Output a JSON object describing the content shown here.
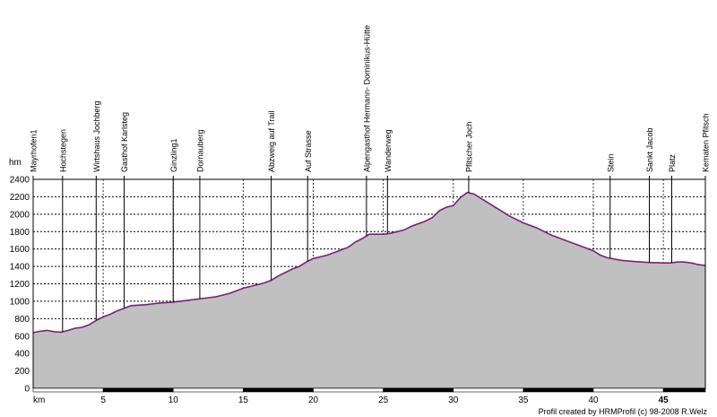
{
  "chart_data": {
    "type": "area",
    "ylabel": "hm",
    "xlabel": "km",
    "xlim": [
      0,
      48
    ],
    "ylim": [
      0,
      2400
    ],
    "y_ticks": [
      0,
      200,
      400,
      600,
      800,
      1000,
      1200,
      1400,
      1600,
      1800,
      2000,
      2200,
      2400
    ],
    "x_ticks": [
      5,
      10,
      15,
      20,
      25,
      30,
      35,
      40,
      45
    ],
    "x_tick_bold": [
      45
    ],
    "grid": true,
    "colors": {
      "fill": "#c0c0c0",
      "line": "#7b1e7b",
      "grid": "#000000",
      "axis_bar": "#000000"
    },
    "series": [
      {
        "x": [
          0,
          0.5,
          1,
          1.5,
          2,
          2.5,
          3,
          3.5,
          4,
          4.5,
          5,
          5.5,
          6,
          6.5,
          7,
          8,
          9,
          10,
          10.5,
          11,
          12,
          12.5,
          13,
          14,
          15,
          16,
          16.5,
          17,
          17.5,
          18,
          18.5,
          19,
          19.5,
          20,
          21,
          22,
          22.5,
          23,
          23.5,
          24,
          25,
          25.5,
          26,
          26.5,
          27,
          28,
          28.5,
          29,
          29.5,
          30,
          30.5,
          31,
          31.5,
          32,
          33,
          34,
          35,
          36,
          37,
          38,
          39,
          40,
          40.5,
          41,
          42,
          43,
          44,
          45,
          45.5,
          46,
          46.5,
          47,
          47.5,
          48
        ],
        "y": [
          640,
          655,
          665,
          650,
          645,
          665,
          690,
          700,
          730,
          780,
          820,
          850,
          890,
          920,
          950,
          960,
          980,
          990,
          1000,
          1010,
          1030,
          1040,
          1050,
          1090,
          1150,
          1190,
          1210,
          1240,
          1290,
          1330,
          1370,
          1400,
          1450,
          1490,
          1530,
          1590,
          1620,
          1680,
          1720,
          1770,
          1770,
          1780,
          1800,
          1820,
          1860,
          1920,
          1960,
          2040,
          2080,
          2100,
          2190,
          2250,
          2230,
          2180,
          2080,
          1980,
          1900,
          1840,
          1760,
          1700,
          1640,
          1580,
          1530,
          1500,
          1470,
          1455,
          1445,
          1440,
          1440,
          1450,
          1450,
          1440,
          1420,
          1410
        ]
      }
    ],
    "waypoints": [
      {
        "name": "Mayrhofen1",
        "km": 0
      },
      {
        "name": "Hochstegen",
        "km": 2.1
      },
      {
        "name": "Wirtshaus Jochberg",
        "km": 4.5
      },
      {
        "name": "Gasthof Karlsteg",
        "km": 6.5
      },
      {
        "name": "Ginzling1",
        "km": 10
      },
      {
        "name": "Dornauberg",
        "km": 11.9
      },
      {
        "name": "Abzweig auf Trail",
        "km": 17
      },
      {
        "name": "Auf Strasse",
        "km": 19.6
      },
      {
        "name": "Alpengasthof Hermann- Dominikus-Hütte",
        "km": 23.8
      },
      {
        "name": "Wanderweg",
        "km": 25.3
      },
      {
        "name": "Pfitscher Joch",
        "km": 31.1
      },
      {
        "name": "Stein",
        "km": 41.2
      },
      {
        "name": "Sankt Jacob",
        "km": 44
      },
      {
        "name": "Platz",
        "km": 45.6
      },
      {
        "name": "Kematen Pfitsch",
        "km": 48
      }
    ]
  },
  "credit": "Profil created by HRMProfil (c) 98-2008 R.Welz"
}
